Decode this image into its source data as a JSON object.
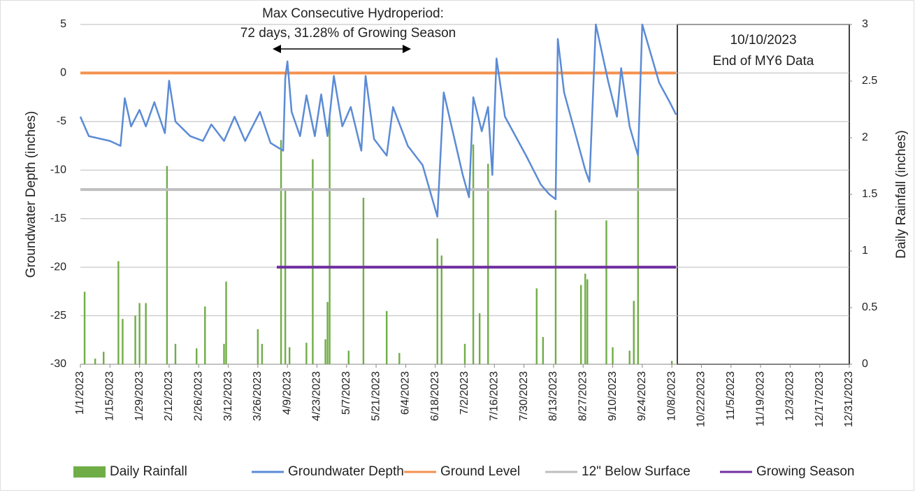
{
  "chart_data": {
    "type": "line",
    "annotations": [
      "Max Consecutive Hydroperiod:",
      "72 days, 31.28% of Growing Season",
      "10/10/2023",
      "End of MY6 Data"
    ],
    "ylabel": "Groundwater Depth (inches)",
    "y2label": "Daily Rainfall (inches)",
    "xlim": [
      "1/1/2023",
      "12/31/2023"
    ],
    "xticks": [
      "1/1/2023",
      "1/15/2023",
      "1/29/2023",
      "2/12/2023",
      "2/26/2023",
      "3/12/2023",
      "3/26/2023",
      "4/9/2023",
      "4/23/2023",
      "5/7/2023",
      "5/21/2023",
      "6/4/2023",
      "6/18/2023",
      "7/2/2023",
      "7/16/2023",
      "7/30/2023",
      "8/13/2023",
      "8/27/2023",
      "9/10/2023",
      "9/24/2023",
      "10/8/2023",
      "10/22/2023",
      "11/5/2023",
      "11/19/2023",
      "12/3/2023",
      "12/17/2023",
      "12/31/2023"
    ],
    "ylim": [
      -30,
      5
    ],
    "yticks": [
      5,
      0,
      -5,
      -10,
      -15,
      -20,
      -25,
      -30
    ],
    "y2lim": [
      0,
      3
    ],
    "y2ticks": [
      0,
      0.5,
      1,
      1.5,
      2,
      2.5,
      3
    ],
    "grid": true,
    "legend": "bottom",
    "series": [
      {
        "name": "Daily Rainfall",
        "type": "bar",
        "axis": "y2",
        "color": "#70ad47",
        "x": [
          "1/3/2023",
          "1/8/2023",
          "1/12/2023",
          "1/19/2023",
          "1/21/2023",
          "1/27/2023",
          "1/29/2023",
          "2/1/2023",
          "2/11/2023",
          "2/15/2023",
          "2/25/2023",
          "3/1/2023",
          "3/10/2023",
          "3/11/2023",
          "3/26/2023",
          "3/28/2023",
          "4/6/2023",
          "4/8/2023",
          "4/10/2023",
          "4/18/2023",
          "4/21/2023",
          "4/27/2023",
          "4/28/2023",
          "4/29/2023",
          "5/8/2023",
          "5/15/2023",
          "5/26/2023",
          "6/1/2023",
          "6/19/2023",
          "6/21/2023",
          "7/2/2023",
          "7/6/2023",
          "7/9/2023",
          "7/13/2023",
          "8/5/2023",
          "8/8/2023",
          "8/14/2023",
          "8/26/2023",
          "8/28/2023",
          "8/29/2023",
          "9/7/2023",
          "9/10/2023",
          "9/18/2023",
          "9/20/2023",
          "9/22/2023",
          "10/8/2023"
        ],
        "values": [
          0.64,
          0.05,
          0.11,
          0.91,
          0.4,
          0.43,
          0.54,
          0.54,
          1.75,
          0.18,
          0.14,
          0.51,
          0.18,
          0.73,
          0.31,
          0.18,
          1.98,
          1.55,
          0.15,
          0.19,
          1.81,
          0.22,
          0.55,
          2.17,
          0.12,
          1.47,
          0.47,
          0.1,
          1.11,
          0.96,
          0.18,
          1.94,
          0.45,
          1.77,
          0.67,
          0.24,
          1.36,
          0.7,
          0.8,
          0.75,
          1.27,
          0.15,
          0.12,
          0.56,
          1.86,
          0.03
        ]
      },
      {
        "name": "Groundwater Depth",
        "type": "line",
        "color": "#5b8bd6",
        "x": [
          "1/1/2023",
          "1/5/2023",
          "1/15/2023",
          "1/20/2023",
          "1/22/2023",
          "1/25/2023",
          "1/29/2023",
          "2/1/2023",
          "2/5/2023",
          "2/10/2023",
          "2/12/2023",
          "2/15/2023",
          "2/22/2023",
          "2/28/2023",
          "3/4/2023",
          "3/10/2023",
          "3/15/2023",
          "3/20/2023",
          "3/27/2023",
          "4/1/2023",
          "4/7/2023",
          "4/8/2023",
          "4/9/2023",
          "4/11/2023",
          "4/15/2023",
          "4/18/2023",
          "4/22/2023",
          "4/25/2023",
          "4/28/2023",
          "5/1/2023",
          "5/5/2023",
          "5/9/2023",
          "5/14/2023",
          "5/16/2023",
          "5/20/2023",
          "5/26/2023",
          "5/29/2023",
          "6/5/2023",
          "6/12/2023",
          "6/19/2023",
          "6/22/2023",
          "7/1/2023",
          "7/4/2023",
          "7/6/2023",
          "7/10/2023",
          "7/13/2023",
          "7/15/2023",
          "7/17/2023",
          "7/21/2023",
          "7/31/2023",
          "8/7/2023",
          "8/11/2023",
          "8/14/2023",
          "8/15/2023",
          "8/18/2023",
          "8/28/2023",
          "8/30/2023",
          "9/2/2023",
          "9/8/2023",
          "9/12/2023",
          "9/14/2023",
          "9/18/2023",
          "9/22/2023",
          "9/24/2023",
          "10/2/2023",
          "10/7/2023",
          "10/10/2023"
        ],
        "values": [
          -4.5,
          -6.5,
          -7,
          -7.5,
          -2.6,
          -5.5,
          -3.8,
          -5.5,
          -3,
          -6.2,
          -0.8,
          -5,
          -6.5,
          -7,
          -5.3,
          -7,
          -4.5,
          -7,
          -4,
          -7.2,
          -8,
          -0.5,
          1.2,
          -4,
          -6.5,
          -2.3,
          -6.5,
          -2.2,
          -6.5,
          -0.3,
          -5.5,
          -3.5,
          -8,
          -0.3,
          -6.8,
          -8.5,
          -3.5,
          -7.5,
          -9.5,
          -14.8,
          -2,
          -10.5,
          -12.8,
          -2.5,
          -6,
          -3.5,
          -10.5,
          1.5,
          -4.5,
          -8.5,
          -11.5,
          -12.5,
          -13,
          3.5,
          -2,
          -10,
          -11.2,
          5,
          -1,
          -4.5,
          0.5,
          -5.5,
          -8.5,
          5,
          -1,
          -3,
          -4.3
        ]
      },
      {
        "name": "Ground Level",
        "type": "line",
        "color": "#f4914f",
        "x": [
          "1/1/2023",
          "10/10/2023"
        ],
        "values": [
          0,
          0
        ]
      },
      {
        "name": "12\" Below Surface",
        "type": "line",
        "color": "#bfbfbf",
        "x": [
          "1/1/2023",
          "10/10/2023"
        ],
        "values": [
          -12,
          -12
        ]
      },
      {
        "name": "Growing Season",
        "type": "line",
        "color": "#7030a0",
        "x": [
          "4/4/2023",
          "10/10/2023"
        ],
        "values": [
          -20,
          -20
        ]
      }
    ]
  }
}
